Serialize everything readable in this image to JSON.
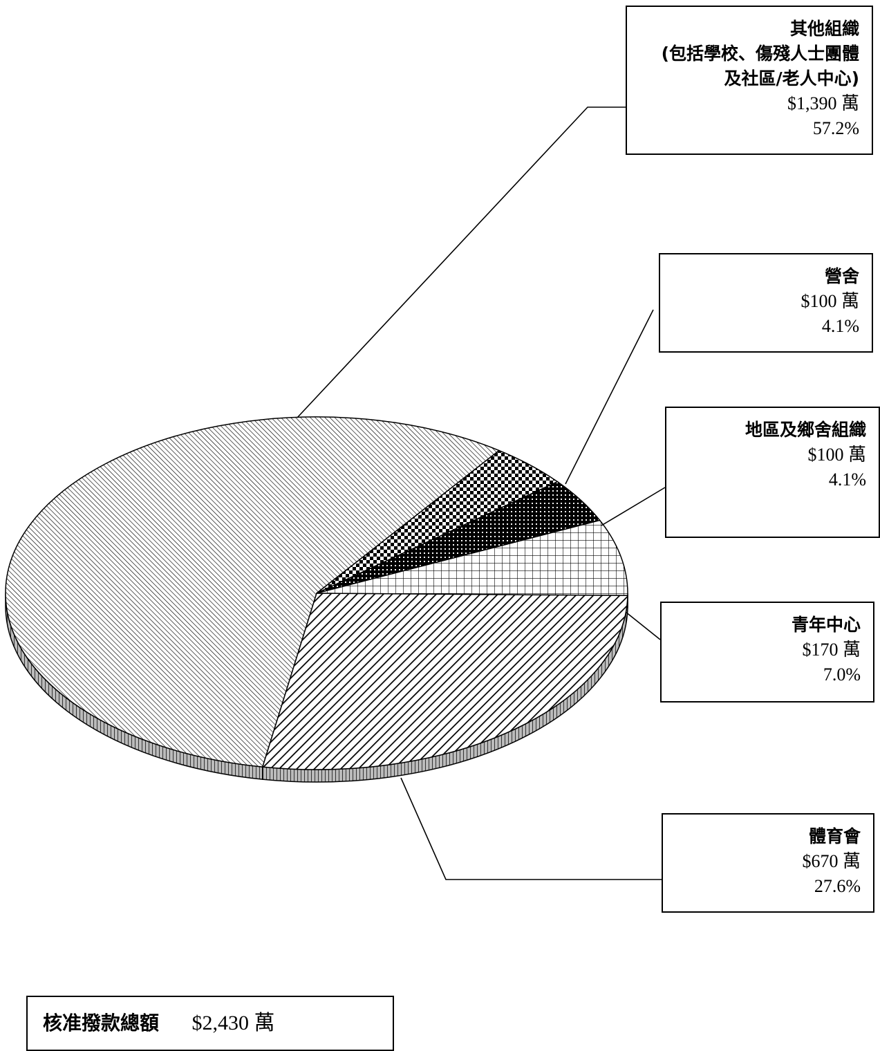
{
  "chart_data": {
    "type": "pie",
    "title": "",
    "currency_unit": "萬",
    "slices": [
      {
        "name_lines": [
          "其他組織",
          "(包括學校、傷殘人士團體",
          "及社區/老人中心)"
        ],
        "amount": "$1,390 萬",
        "value": 1390,
        "percent": "57.2%",
        "pattern": "diag-fine"
      },
      {
        "name_lines": [
          "營舍"
        ],
        "amount": "$100 萬",
        "value": 100,
        "percent": "4.1%",
        "pattern": "checker"
      },
      {
        "name_lines": [
          "地區及鄉舍組織"
        ],
        "amount": "$100 萬",
        "value": 100,
        "percent": "4.1%",
        "pattern": "dense-dots"
      },
      {
        "name_lines": [
          "青年中心"
        ],
        "amount": "$170 萬",
        "value": 170,
        "percent": "7.0%",
        "pattern": "grid"
      },
      {
        "name_lines": [
          "體育會"
        ],
        "amount": "$670 萬",
        "value": 670,
        "percent": "27.6%",
        "pattern": "diag-wide"
      }
    ],
    "total": {
      "label": "核准撥款總額",
      "value": "$2,430 萬"
    }
  }
}
